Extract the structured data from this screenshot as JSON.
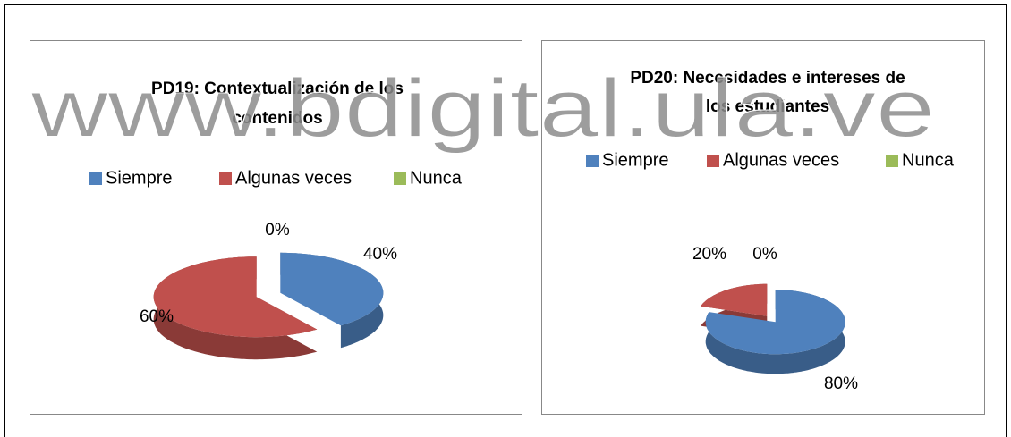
{
  "watermark": "www.bdigital.ula.ve",
  "chart_data": [
    {
      "type": "pie",
      "title": [
        "PD19: Contextualización de los",
        "contenidos"
      ],
      "categories": [
        "Siempre",
        "Algunas veces",
        "Nunca"
      ],
      "values": [
        40,
        60,
        0
      ],
      "value_labels": [
        "40%",
        "60%",
        "0%"
      ],
      "colors": [
        "#4f81bd",
        "#c0504d",
        "#9bbb59"
      ],
      "legend": "top",
      "three_d": true,
      "exploded": true
    },
    {
      "type": "pie",
      "title": [
        "PD20: Necesidades e intereses de",
        "los estudiantes"
      ],
      "categories": [
        "Siempre",
        "Algunas veces",
        "Nunca"
      ],
      "values": [
        80,
        20,
        0
      ],
      "value_labels": [
        "80%",
        "20%",
        "0%"
      ],
      "colors": [
        "#4f81bd",
        "#c0504d",
        "#9bbb59"
      ],
      "legend": "top",
      "three_d": true,
      "exploded": true
    }
  ]
}
